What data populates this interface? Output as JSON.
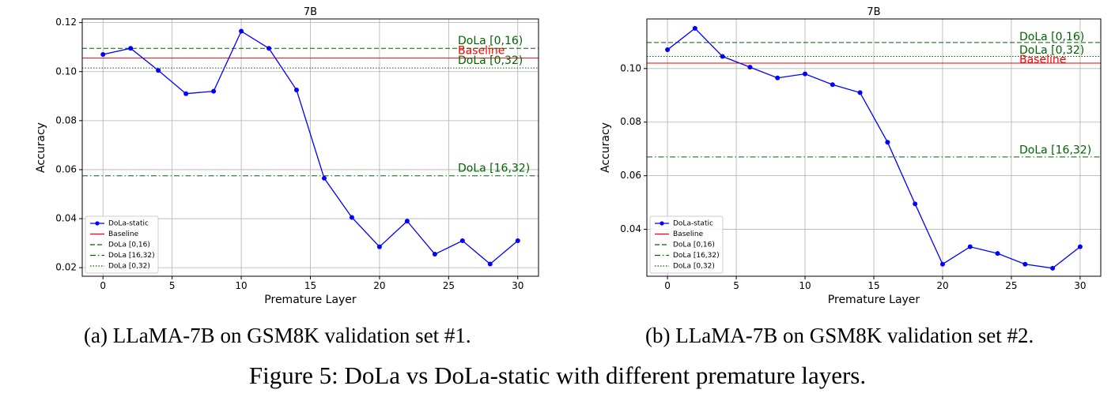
{
  "figure_caption": "Figure 5: DoLa vs DoLa-static with different premature layers.",
  "colors": {
    "series": "#0000ff",
    "baseline": "#ff0000",
    "dola_lines": "#006400",
    "grid": "#b0b0b0"
  },
  "chart_data": [
    {
      "type": "line",
      "title": "7B",
      "caption": "(a) LLaMA-7B on GSM8K validation set #1.",
      "xlabel": "Premature Layer",
      "ylabel": "Accuracy",
      "xlim": [
        -1.5,
        31.5
      ],
      "ylim": [
        0.0165,
        0.1215
      ],
      "xticks": [
        0,
        5,
        10,
        15,
        20,
        25,
        30
      ],
      "yticks": [
        0.02,
        0.04,
        0.06,
        0.08,
        0.1,
        0.12
      ],
      "ytick_labels": [
        "0.02",
        "0.04",
        "0.06",
        "0.08",
        "0.10",
        "0.12"
      ],
      "grid": true,
      "legend_position": "lower-left",
      "series": [
        {
          "name": "DoLa-static",
          "x": [
            0,
            2,
            4,
            6,
            8,
            10,
            12,
            14,
            16,
            18,
            20,
            22,
            24,
            26,
            28,
            30
          ],
          "y": [
            0.107,
            0.1095,
            0.1005,
            0.091,
            0.092,
            0.1165,
            0.1095,
            0.0925,
            0.0565,
            0.0405,
            0.0285,
            0.039,
            0.0255,
            0.031,
            0.0215,
            0.031
          ]
        }
      ],
      "reference_lines": [
        {
          "name": "Baseline",
          "y": 0.1055,
          "style": "solid",
          "color": "#ff0000",
          "label": "Baseline",
          "label_y": 0.1085
        },
        {
          "name": "DoLa [0,16)",
          "y": 0.1095,
          "style": "dashed",
          "color": "#006400",
          "label": "DoLa [0,16)",
          "label_y": 0.1125
        },
        {
          "name": "DoLa [16,32)",
          "y": 0.0575,
          "style": "dashdot",
          "color": "#006400",
          "label": "DoLa [16,32)",
          "label_y": 0.0605
        },
        {
          "name": "DoLa [0,32)",
          "y": 0.1015,
          "style": "dotted",
          "color": "#006400",
          "label": "DoLa [0,32)",
          "label_y": 0.1045
        }
      ]
    },
    {
      "type": "line",
      "title": "7B",
      "caption": "(b) LLaMA-7B on GSM8K validation set #2.",
      "xlabel": "Premature Layer",
      "ylabel": "Accuracy",
      "xlim": [
        -1.5,
        31.5
      ],
      "ylim": [
        0.0225,
        0.1185
      ],
      "xticks": [
        0,
        5,
        10,
        15,
        20,
        25,
        30
      ],
      "yticks": [
        0.04,
        0.06,
        0.08,
        0.1
      ],
      "ytick_labels": [
        "0.04",
        "0.06",
        "0.08",
        "0.10"
      ],
      "grid": true,
      "legend_position": "lower-left",
      "series": [
        {
          "name": "DoLa-static",
          "x": [
            0,
            2,
            4,
            6,
            8,
            10,
            12,
            14,
            16,
            18,
            20,
            22,
            24,
            26,
            28,
            30
          ],
          "y": [
            0.107,
            0.115,
            0.1045,
            0.1005,
            0.0965,
            0.098,
            0.094,
            0.091,
            0.0725,
            0.0495,
            0.027,
            0.0335,
            0.031,
            0.027,
            0.0255,
            0.0335
          ]
        }
      ],
      "reference_lines": [
        {
          "name": "Baseline",
          "y": 0.102,
          "style": "solid",
          "color": "#ff0000",
          "label": "Baseline",
          "label_y": 0.1032
        },
        {
          "name": "DoLa [0,16)",
          "y": 0.1097,
          "style": "dashed",
          "color": "#006400",
          "label": "DoLa [0,16)",
          "label_y": 0.1118
        },
        {
          "name": "DoLa [16,32)",
          "y": 0.067,
          "style": "dashdot",
          "color": "#006400",
          "label": "DoLa [16,32)",
          "label_y": 0.0695
        },
        {
          "name": "DoLa [0,32)",
          "y": 0.1045,
          "style": "dotted",
          "color": "#006400",
          "label": "DoLa [0,32)",
          "label_y": 0.1067
        }
      ]
    }
  ]
}
